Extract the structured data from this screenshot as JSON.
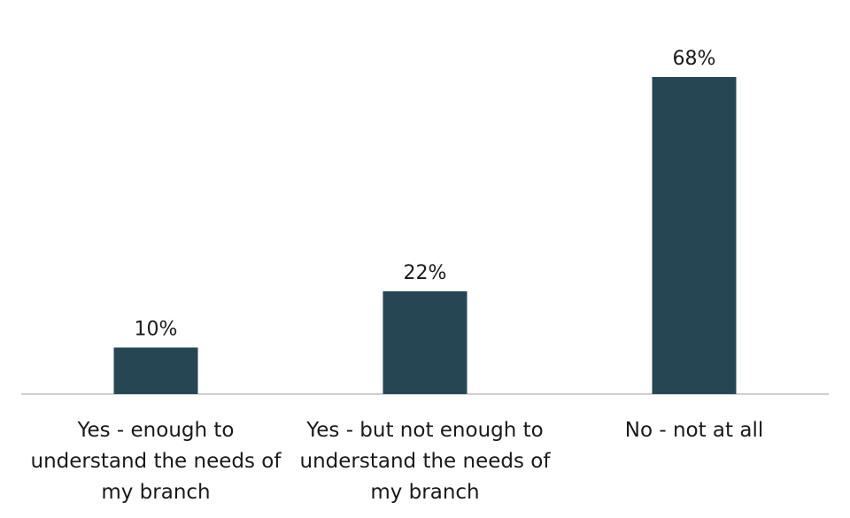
{
  "chart_data": {
    "type": "bar",
    "title": "",
    "xlabel": "",
    "ylabel": "",
    "ylim": [
      0,
      70
    ],
    "grid": false,
    "legend": "none",
    "categories": [
      "Yes - enough to understand the needs of my branch",
      "Yes - but not enough to understand the needs of my branch",
      "No - not at all"
    ],
    "category_lines": [
      [
        "Yes - enough to",
        "understand the needs of",
        "my branch"
      ],
      [
        "Yes - but not enough to",
        "understand the needs of",
        "my branch"
      ],
      [
        "No - not at all"
      ]
    ],
    "values": [
      10,
      22,
      68
    ],
    "data_labels": [
      "10%",
      "22%",
      "68%"
    ],
    "value_unit": "%",
    "colors": {
      "bar": "#264653",
      "axis": "#d0d0d0",
      "text": "#1a1a1a"
    }
  }
}
